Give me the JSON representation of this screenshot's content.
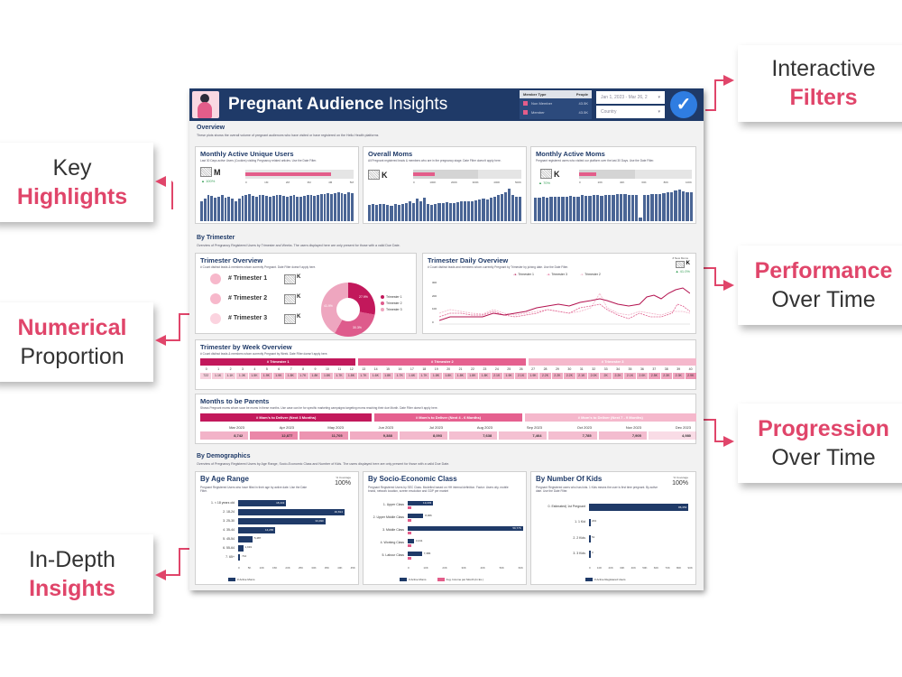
{
  "callouts": {
    "key_highlights": {
      "line1": "Key",
      "line2": "Highlights"
    },
    "numerical_proportion": {
      "line1": "Numerical",
      "line2": "Proportion"
    },
    "in_depth_insights": {
      "line1": "In-Depth",
      "line2": "Insights"
    },
    "interactive_filters": {
      "line1": "Interactive",
      "line2": "Filters"
    },
    "performance_over_time": {
      "line1": "Performance",
      "line2": "Over Time"
    },
    "progression_over_time": {
      "line1": "Progression",
      "line2": "Over Time"
    }
  },
  "colors": {
    "accent": "#e0456a",
    "navy": "#1f3a68",
    "pink": "#e35d8a",
    "pink_dark": "#c2185b",
    "pink_light": "#f3b6c9"
  },
  "header": {
    "title_bold": "Pregnant Audience",
    "title_light": "Insights",
    "member_type": {
      "header_label": "Member Type",
      "header_value": "People",
      "options": [
        {
          "label": "Non Member",
          "value": "43.5K"
        },
        {
          "label": "Member",
          "value": "43.5K"
        }
      ]
    },
    "date_filter": "Jan 1, 2023 - Mar 26, 2",
    "country_filter": "Country"
  },
  "overview": {
    "title": "Overview",
    "description": "These plots shows the overall volume of pregnant audiences who have visited or have registered on the Hello Health platforms",
    "cards": [
      {
        "title": "Monthly Active Unique Users",
        "desc": "Last 30 Days active Users (Cookies) visiting Pregnancy related articles. Use the Date Filter.",
        "unit": "M",
        "growth": "▲ 100%",
        "ticks": [
          "0",
          "1M",
          "2M",
          "3M",
          "4M",
          "5M"
        ]
      },
      {
        "title": "Overall Moms",
        "desc": "All Pregnant registered leads & members who are in the pregnancy stage. Date Filter doesn't apply here.",
        "unit": "K",
        "growth": "",
        "ticks": [
          "0",
          "100K",
          "200K",
          "300K",
          "400K",
          "500K"
        ]
      },
      {
        "title": "Monthly Active Moms",
        "desc": "Pregnant registered users who visited our platform over the last 30 Days. Use the Date Filter.",
        "unit": "K",
        "growth": "▲ 70%",
        "ticks": [
          "0",
          "20K",
          "40K",
          "60K",
          "80K",
          "100K"
        ]
      }
    ]
  },
  "by_trimester": {
    "title": "By Trimester",
    "description": "Overview of Pregnancy Registered Users by Trimester and Weeks. The users displayed here are only present for those with a valid Due Date.",
    "overview_card": {
      "title": "Trimester Overview",
      "desc": "# Count distinct leads & members whom currently Pregnant. Date Filter doesn't apply here.",
      "rows": [
        {
          "label": "# Trimester 1",
          "unit": "K"
        },
        {
          "label": "# Trimester 2",
          "unit": "K"
        },
        {
          "label": "# Trimester 3",
          "unit": "K"
        }
      ],
      "donut": [
        {
          "label": "Trimester 1",
          "pct": "27.9%",
          "color": "#c2185b"
        },
        {
          "label": "Trimester 2",
          "pct": "30.3%",
          "color": "#de5b8c"
        },
        {
          "label": "Trimester 3",
          "pct": "41.9%",
          "color": "#eea6bf"
        }
      ]
    },
    "daily_card": {
      "title": "Trimester Daily Overview",
      "desc": "# Count distinct leads and members whom currently Pregnant by Trimester by joining date. Use the Date Filter.",
      "kpi_label": "# New Moms",
      "kpi_unit": "K",
      "kpi_growth": "▲ 41.0%",
      "legend": [
        "Trimester 1",
        "Trimester 3",
        "Trimester 2"
      ],
      "y_ticks": [
        "300",
        "200",
        "100",
        "0"
      ]
    }
  },
  "week_overview": {
    "title": "Trimester by Week Overview",
    "desc": "# Count distinct leads & members whom currently Pregnant by Week. Date Filter doesn't apply here.",
    "bands": [
      "# Trimester 1",
      "# Trimester 2",
      "# Trimester 3"
    ],
    "weeks": [
      "0",
      "1",
      "2",
      "3",
      "4",
      "5",
      "6",
      "7",
      "8",
      "9",
      "10",
      "11",
      "12",
      "13",
      "14",
      "15",
      "16",
      "17",
      "18",
      "19",
      "20",
      "21",
      "22",
      "23",
      "24",
      "25",
      "26",
      "27",
      "28",
      "29",
      "30",
      "31",
      "32",
      "33",
      "34",
      "35",
      "36",
      "37",
      "38",
      "39",
      "40"
    ],
    "values": [
      "722",
      "1.1K",
      "1.1K",
      "1.3K",
      "1.5K",
      "1.9K",
      "1.9K",
      "1.8K",
      "1.7K",
      "1.8K",
      "1.8K",
      "1.7K",
      "1.8K",
      "1.7K",
      "1.6K",
      "1.8K",
      "1.7K",
      "1.6K",
      "1.7K",
      "1.8K",
      "1.8K",
      "1.8K",
      "1.8K",
      "1.8K",
      "2.1K",
      "1.9K",
      "2.1K",
      "1.9K",
      "2.2K",
      "2.2K",
      "2.2K",
      "2.1K",
      "2.0K",
      "2K",
      "2.2K",
      "2.1K",
      "2.0K",
      "2.5K",
      "2.3K",
      "2.3K",
      "2.9K"
    ]
  },
  "months_to_parents": {
    "title": "Months to be Parents",
    "desc": "Shows Pregnant moms whom soon be mums in these months. Use case can be for specific marketing campaigns targeting moms reaching their due Month. Date Filter doesn't apply here.",
    "bands": [
      "# Mom's to Deliver (Next 3 Months)",
      "# Mom's to Deliver (Next 4 - 6 Months)",
      "# Mom's to Deliver (Next 7 - 9 Months)"
    ],
    "months": [
      "Mar 2023",
      "Apr 2023",
      "May 2023",
      "Jun 2023",
      "Jul 2023",
      "Aug 2023",
      "Sep 2023",
      "Oct 2023",
      "Nov 2023",
      "Dec 2023"
    ],
    "values": [
      "8,742",
      "12,877",
      "11,705",
      "9,388",
      "8,093",
      "7,638",
      "7,464",
      "7,785",
      "7,905",
      "4,980"
    ]
  },
  "demographics": {
    "title": "By Demographics",
    "description": "Overview of Pregnancy Registered Users by Age Range, Socio-Economic Class and Number of Kids. The users displayed here are only present for those with a valid Due Date.",
    "age": {
      "title": "By Age Range",
      "desc": "Pregnant Registered Users who have filled in their age by active date. Use the Date Filter.",
      "coverage_label": "% Coverage",
      "coverage": "100%",
      "legend": "# Active Moms",
      "categories": [
        "1. < 18 years old",
        "2. 18-24",
        "3. 25-30",
        "4. 35-44",
        "5. 45-54",
        "6. 55-64",
        "7. 65+"
      ],
      "values": [
        "18,443",
        "40,814",
        "33,490",
        "14,265",
        "5,487",
        "1,919",
        "714"
      ],
      "ticks": [
        "0",
        "5K",
        "10K",
        "15K",
        "20K",
        "25K",
        "30K",
        "35K",
        "40K",
        "45K"
      ]
    },
    "sec": {
      "title": "By Socio-Economic Class",
      "desc": "Pregnant Registered Users by SEC Class. Modelled based on HH internal definition. Factor: Users city, mobile brand, network location, screen resolution and GDP per market",
      "legend": [
        "# Active Moms",
        "Avg. Income per Month (In Ex.)"
      ],
      "categories": [
        "1. Upper Class",
        "2. Upper Middle Class",
        "3. Middle Class",
        "4. Working Class",
        "5. Labour Class"
      ],
      "values": [
        "13,233",
        "8,066",
        "59,776",
        "3,241",
        "7,386"
      ],
      "ticks": [
        "0",
        "10K",
        "20K",
        "30K",
        "40K",
        "50K",
        "60K"
      ]
    },
    "kids": {
      "title": "By Number Of Kids",
      "desc": "Pregnant Registered users who has kids. 1 Kids means the user is first time pregnant. By active date. Use the Date Filter.",
      "coverage_label": "% Coverage",
      "coverage": "100%",
      "legend": "# Active Registered Users",
      "categories": [
        "0. Estimated) 1st Pregnant",
        "1. 1 Kid",
        "2. 2 Kids",
        "3. 3 Kids"
      ],
      "values": [
        "86,353",
        "233",
        "51",
        "3"
      ],
      "ticks": [
        "0",
        "10K",
        "20K",
        "30K",
        "40K",
        "50K",
        "60K",
        "70K",
        "80K",
        "90K"
      ]
    }
  }
}
